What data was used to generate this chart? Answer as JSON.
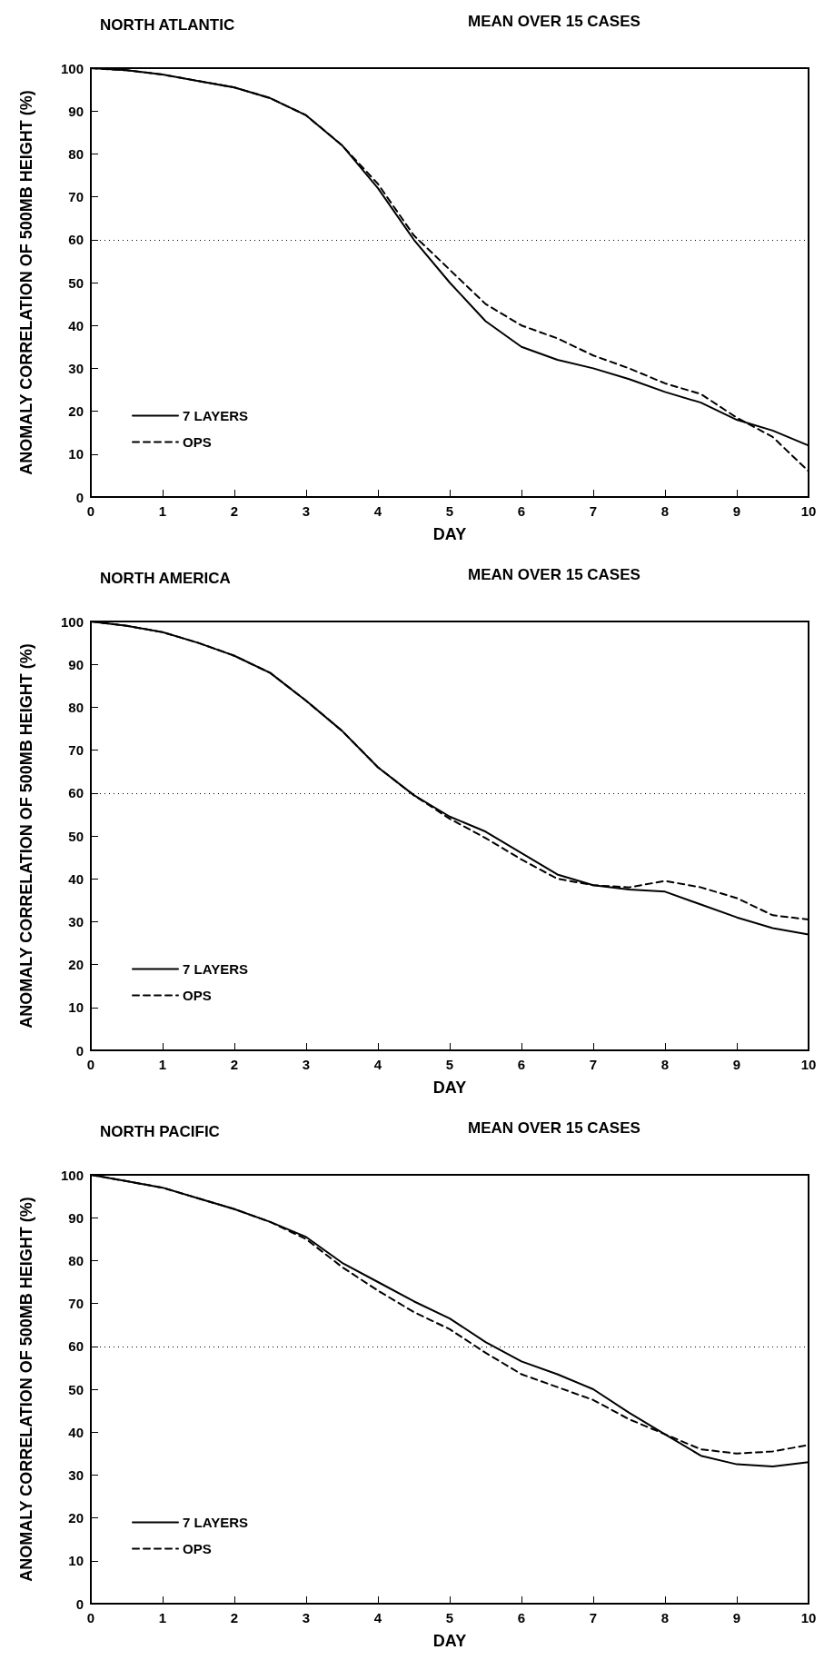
{
  "chart_data": [
    {
      "type": "line",
      "title": "NORTH ATLANTIC",
      "subtitle": "MEAN OVER 15 CASES",
      "xlabel": "DAY",
      "ylabel": "ANOMALY CORRELATION OF 500MB HEIGHT (%)",
      "xlim": [
        0,
        10
      ],
      "xticks": [
        0,
        1,
        2,
        3,
        4,
        5,
        6,
        7,
        8,
        9,
        10
      ],
      "ylim": [
        0,
        100
      ],
      "yticks": [
        0,
        10,
        20,
        30,
        40,
        50,
        60,
        70,
        80,
        90,
        100
      ],
      "grid": false,
      "legend": "bottom left",
      "marker": "none",
      "x": [
        0,
        0.5,
        1,
        1.5,
        2,
        2.5,
        3,
        3.5,
        4,
        4.5,
        5,
        5.5,
        6,
        6.5,
        7,
        7.5,
        8,
        8.5,
        9,
        9.5,
        10
      ],
      "ref_lines": [
        {
          "axis": "y",
          "value": 60,
          "color": "#000000",
          "line_style": "dotted"
        }
      ],
      "series": [
        {
          "name": "7 LAYERS",
          "color": "#000000",
          "line_style": "solid",
          "values": [
            100,
            99.5,
            98.5,
            97,
            95.5,
            93,
            89,
            82,
            72,
            60,
            50,
            41,
            35,
            32,
            30,
            27.5,
            24.5,
            22,
            18,
            15.5,
            12
          ]
        },
        {
          "name": "OPS",
          "color": "#000000",
          "line_style": "dashed",
          "values": [
            100,
            99.5,
            98.5,
            97,
            95.5,
            93,
            89,
            82,
            73,
            61,
            53,
            45,
            40,
            37,
            33,
            30,
            26.5,
            24,
            18.5,
            14,
            6
          ]
        }
      ]
    },
    {
      "type": "line",
      "title": "NORTH AMERICA",
      "subtitle": "MEAN OVER 15 CASES",
      "xlabel": "DAY",
      "ylabel": "ANOMALY CORRELATION OF 500MB HEIGHT (%)",
      "xlim": [
        0,
        10
      ],
      "xticks": [
        0,
        1,
        2,
        3,
        4,
        5,
        6,
        7,
        8,
        9,
        10
      ],
      "ylim": [
        0,
        100
      ],
      "yticks": [
        0,
        10,
        20,
        30,
        40,
        50,
        60,
        70,
        80,
        90,
        100
      ],
      "grid": false,
      "legend": "bottom left",
      "marker": "none",
      "x": [
        0,
        0.5,
        1,
        1.5,
        2,
        2.5,
        3,
        3.5,
        4,
        4.5,
        5,
        5.5,
        6,
        6.5,
        7,
        7.5,
        8,
        8.5,
        9,
        9.5,
        10
      ],
      "ref_lines": [
        {
          "axis": "y",
          "value": 60,
          "color": "#000000",
          "line_style": "dotted"
        }
      ],
      "series": [
        {
          "name": "7 LAYERS",
          "color": "#000000",
          "line_style": "solid",
          "values": [
            100,
            99,
            97.5,
            95,
            92,
            88,
            81.5,
            74.5,
            66,
            59.5,
            54.5,
            51,
            46,
            41,
            38.5,
            37.5,
            37,
            34,
            31,
            28.5,
            27
          ]
        },
        {
          "name": "OPS",
          "color": "#000000",
          "line_style": "dashed",
          "values": [
            100,
            99,
            97.5,
            95,
            92,
            88,
            81.5,
            74.5,
            66,
            59.5,
            54,
            49.5,
            44.5,
            40,
            38.5,
            38,
            39.5,
            38,
            35.5,
            31.5,
            30.5
          ]
        }
      ]
    },
    {
      "type": "line",
      "title": "NORTH PACIFIC",
      "subtitle": "MEAN OVER 15 CASES",
      "xlabel": "DAY",
      "ylabel": "ANOMALY CORRELATION OF 500MB HEIGHT (%)",
      "xlim": [
        0,
        10
      ],
      "xticks": [
        0,
        1,
        2,
        3,
        4,
        5,
        6,
        7,
        8,
        9,
        10
      ],
      "ylim": [
        0,
        100
      ],
      "yticks": [
        0,
        10,
        20,
        30,
        40,
        50,
        60,
        70,
        80,
        90,
        100
      ],
      "grid": false,
      "legend": "bottom left",
      "marker": "none",
      "x": [
        0,
        0.5,
        1,
        1.5,
        2,
        2.5,
        3,
        3.5,
        4,
        4.5,
        5,
        5.5,
        6,
        6.5,
        7,
        7.5,
        8,
        8.5,
        9,
        9.5,
        10
      ],
      "ref_lines": [
        {
          "axis": "y",
          "value": 60,
          "color": "#000000",
          "line_style": "dotted"
        }
      ],
      "series": [
        {
          "name": "7 LAYERS",
          "color": "#000000",
          "line_style": "solid",
          "values": [
            100,
            98.5,
            97,
            94.5,
            92,
            89,
            85.5,
            79.5,
            75,
            70.5,
            66.5,
            61,
            56.5,
            53.5,
            50,
            44.5,
            39.5,
            34.5,
            32.5,
            32,
            33
          ]
        },
        {
          "name": "OPS",
          "color": "#000000",
          "line_style": "dashed",
          "values": [
            100,
            98.5,
            97,
            94.5,
            92,
            89,
            85,
            78.5,
            73,
            68,
            64,
            58.5,
            53.5,
            50.5,
            47.5,
            43,
            39.5,
            36,
            35,
            35.5,
            37
          ]
        }
      ]
    }
  ]
}
